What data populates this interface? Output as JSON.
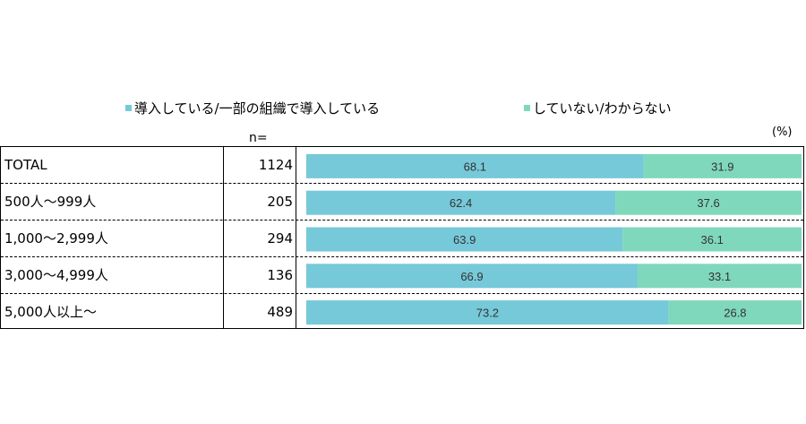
{
  "legend": {
    "series_a": "導入している/一部の組織で導入している",
    "series_b": "していない/わからない"
  },
  "n_header": "n=",
  "unit": "(%)",
  "colors": {
    "series_a": "#76c9d9",
    "series_b": "#80d8bc"
  },
  "rows": [
    {
      "label": "TOTAL",
      "n": "1124"
    },
    {
      "label": "500人～999人",
      "n": "205"
    },
    {
      "label": "1,000～2,999人",
      "n": "294"
    },
    {
      "label": "3,000～4,999人",
      "n": "136"
    },
    {
      "label": "5,000人以上～",
      "n": "489"
    }
  ],
  "chart_data": {
    "type": "bar",
    "orientation": "horizontal",
    "stacked": true,
    "percent": true,
    "categories": [
      "TOTAL",
      "500人～999人",
      "1,000～2,999人",
      "3,000～4,999人",
      "5,000人以上～"
    ],
    "series": [
      {
        "name": "導入している/一部の組織で導入している",
        "values": [
          68.1,
          62.4,
          63.9,
          66.9,
          73.2
        ]
      },
      {
        "name": "していない/わからない",
        "values": [
          31.9,
          37.6,
          36.1,
          33.1,
          26.8
        ]
      }
    ],
    "xlim": [
      0,
      100
    ],
    "legend_position": "top",
    "grid": false
  }
}
